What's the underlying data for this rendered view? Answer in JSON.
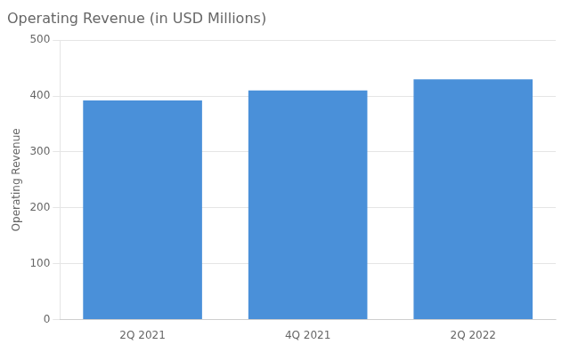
{
  "chart_data": {
    "type": "bar",
    "title": "Operating Revenue (in USD Millions)",
    "categories": [
      "2Q 2021",
      "4Q 2021",
      "2Q 2022"
    ],
    "values": [
      392,
      410,
      430
    ],
    "color": "#4A90D9",
    "ylabel": "Operating Revenue",
    "ylim": [
      0,
      500
    ],
    "yticks": [
      0,
      100,
      200,
      300,
      400,
      500
    ],
    "grid": true
  }
}
